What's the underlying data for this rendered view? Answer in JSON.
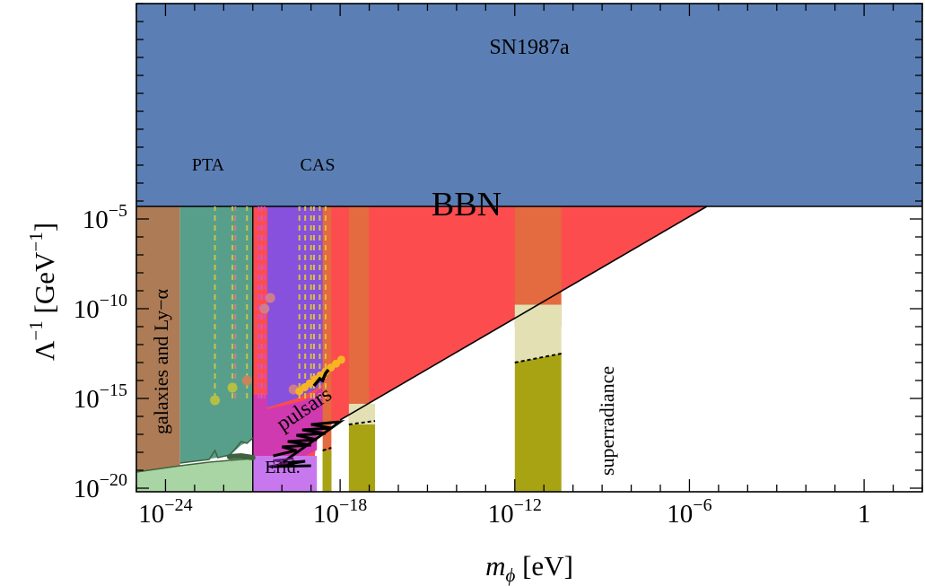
{
  "chart_data": {
    "type": "area",
    "xlabel": "m_ϕ [eV]",
    "ylabel": "Λ⁻¹ [GeV⁻¹]",
    "x_scale": "log",
    "y_scale": "log",
    "xlim_log10": [
      -25,
      2
    ],
    "ylim_log10": [
      -20.2,
      7.0
    ],
    "x_ticks": [
      {
        "log10": -24,
        "label": "10",
        "exp": "−24"
      },
      {
        "log10": -18,
        "label": "10",
        "exp": "−18"
      },
      {
        "log10": -12,
        "label": "10",
        "exp": "−12"
      },
      {
        "log10": -6,
        "label": "10",
        "exp": "−6"
      },
      {
        "log10": 0,
        "label": "1",
        "exp": ""
      }
    ],
    "y_ticks": [
      {
        "log10": -5,
        "label": "10",
        "exp": "−5"
      },
      {
        "log10": -10,
        "label": "10",
        "exp": "−10"
      },
      {
        "log10": -15,
        "label": "10",
        "exp": "−15"
      },
      {
        "log10": -20,
        "label": "10",
        "exp": "−20"
      }
    ],
    "regions": [
      {
        "name": "SN1987a",
        "label": "SN1987a",
        "color": "#5b7fb5",
        "x_log10": [
          -25,
          2
        ],
        "y_log10": [
          -4.3,
          7.0
        ]
      },
      {
        "name": "galaxies and Ly-α",
        "label": "galaxies and Ly−α",
        "color": "#ad7c56",
        "x_log10": [
          -25,
          -23.5
        ],
        "y_log10": [
          -20.2,
          -4.3
        ]
      },
      {
        "name": "PTA",
        "label": "PTA",
        "color": "#579f8b",
        "x_log10": [
          -23.5,
          -21.0
        ],
        "y_log10": [
          -17.3,
          -4.3
        ]
      },
      {
        "name": "CAS",
        "label": "CAS",
        "color": "#8750dd",
        "x_log10": [
          -20.5,
          -18.4
        ],
        "y_log10": [
          -15.5,
          -4.3
        ]
      },
      {
        "name": "BBN",
        "label": "BBN",
        "color": "#fc4c4d",
        "boundary_x_log10": [
          -18.0,
          -5.4
        ],
        "boundary_y_log10": [
          -16.2,
          -4.3
        ]
      },
      {
        "name": "superradiance",
        "label": "superradiance",
        "color": "#a8a312",
        "x_log10": [
          -12.0,
          -10.4
        ],
        "y_log10": [
          -20.2,
          -13.0
        ]
      },
      {
        "name": "Erid.",
        "label": "Erid.",
        "color": "#c878ef",
        "x_log10": [
          -20.5,
          -18.7
        ],
        "y_log10": [
          -20.2,
          -18.2
        ]
      },
      {
        "name": "pulsars",
        "label": "pulsars",
        "color": "#d03ab0"
      }
    ],
    "dataset_colors": {
      "galaxies": "#ad7c56",
      "pta": "#579f8b",
      "cas": "#8750dd",
      "bbn": "#fc4c4d",
      "orange_band": "#e46a3f",
      "superradiance": "#a8a312",
      "superradiance_light": "#e3e1b4",
      "erid": "#c878ef",
      "pulsars_region": "#d03ab0",
      "pulsars_label": "#f6b422",
      "sn1987a": "#5b7fb5",
      "light_green": "#a9d5a5",
      "dark_green": "#3e633e"
    }
  }
}
